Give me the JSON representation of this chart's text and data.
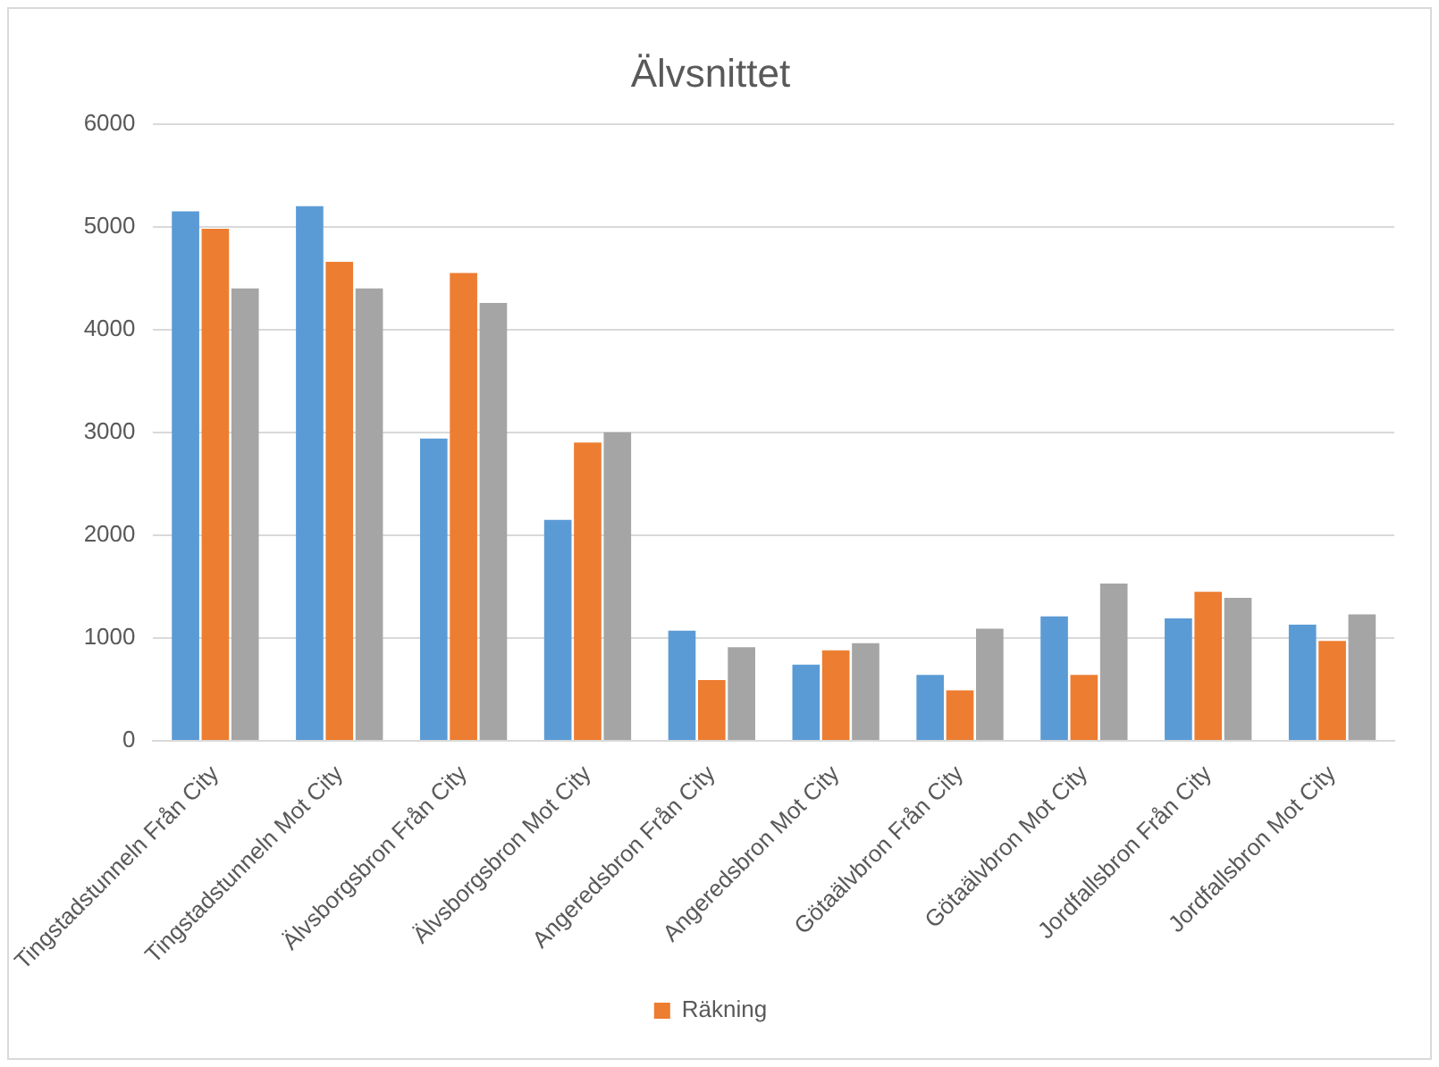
{
  "chart_data": {
    "type": "bar",
    "title": "Älvsnittet",
    "categories": [
      "Tingstadstunneln Från City",
      "Tingstadstunneln Mot City",
      "Älvsborgsbron Från City",
      "Älvsborgsbron Mot City",
      "Angeredsbron Från City",
      "Angeredsbron Mot City",
      "Götaälvbron Från City",
      "Götaälvbron Mot City",
      "Jordfallsbron Från City",
      "Jordfallsbron Mot City"
    ],
    "series": [
      {
        "color": "#5b9bd5",
        "values": [
          5150,
          5200,
          2940,
          2150,
          1070,
          740,
          640,
          1210,
          1190,
          1130
        ]
      },
      {
        "name": "Räkning",
        "color": "#ed7d31",
        "values": [
          4980,
          4660,
          4550,
          2900,
          590,
          880,
          490,
          640,
          1450,
          970
        ]
      },
      {
        "color": "#a5a5a5",
        "values": [
          4400,
          4400,
          4260,
          3000,
          910,
          950,
          1090,
          1530,
          1390,
          1230
        ]
      }
    ],
    "ylim": [
      0,
      6000
    ],
    "yticks": [
      0,
      1000,
      2000,
      3000,
      4000,
      5000,
      6000
    ],
    "grid": "y",
    "legend": "bottom"
  }
}
